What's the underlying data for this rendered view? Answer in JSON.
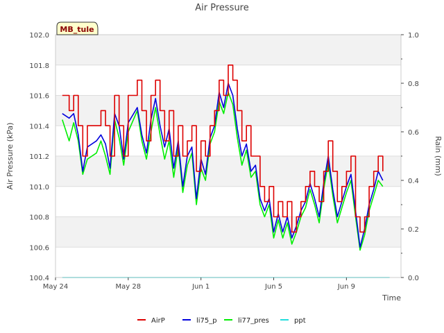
{
  "chart_data": {
    "type": "line",
    "title": "Air Pressure",
    "xlabel": "Time",
    "ylabel": "Air Pressure (kPa)",
    "y2label": "Rain (mm)",
    "ylim": [
      100.4,
      102.0
    ],
    "y2lim": [
      0.0,
      1.0
    ],
    "xlim": [
      "2023-05-24",
      "2023-06-12"
    ],
    "x_ticks": [
      {
        "date": "2023-05-24",
        "label": "May 24"
      },
      {
        "date": "2023-05-28",
        "label": "May 28"
      },
      {
        "date": "2023-06-01",
        "label": "Jun 1"
      },
      {
        "date": "2023-06-05",
        "label": "Jun 5"
      },
      {
        "date": "2023-06-09",
        "label": "Jun 9"
      }
    ],
    "y_ticks": [
      "100.4",
      "100.6",
      "100.8",
      "101.0",
      "101.2",
      "101.4",
      "101.6",
      "101.8",
      "102.0"
    ],
    "y2_ticks": [
      "0.0",
      "0.2",
      "0.4",
      "0.6",
      "0.8",
      "1.0"
    ],
    "grid": "horizontal bands",
    "legend_position": "bottom",
    "station_label": "MB_tule",
    "colors": {
      "AirP": "#dd0000",
      "li75_p": "#0000dd",
      "li77_pres": "#00ee00",
      "ppt": "#22dddd"
    },
    "series": [
      {
        "name": "AirP",
        "axis": "left",
        "points": [
          [
            "2023-05-24 09:00",
            101.6
          ],
          [
            "2023-05-24 18:00",
            101.5
          ],
          [
            "2023-05-25 00:00",
            101.6
          ],
          [
            "2023-05-25 06:00",
            101.4
          ],
          [
            "2023-05-25 12:00",
            101.2
          ],
          [
            "2023-05-25 18:00",
            101.4
          ],
          [
            "2023-05-26 06:00",
            101.4
          ],
          [
            "2023-05-26 12:00",
            101.5
          ],
          [
            "2023-05-26 18:00",
            101.4
          ],
          [
            "2023-05-27 00:00",
            101.2
          ],
          [
            "2023-05-27 06:00",
            101.6
          ],
          [
            "2023-05-27 12:00",
            101.4
          ],
          [
            "2023-05-27 18:00",
            101.2
          ],
          [
            "2023-05-28 00:00",
            101.6
          ],
          [
            "2023-05-28 12:00",
            101.7
          ],
          [
            "2023-05-28 18:00",
            101.5
          ],
          [
            "2023-05-29 00:00",
            101.3
          ],
          [
            "2023-05-29 06:00",
            101.6
          ],
          [
            "2023-05-29 12:00",
            101.7
          ],
          [
            "2023-05-29 18:00",
            101.5
          ],
          [
            "2023-05-30 00:00",
            101.3
          ],
          [
            "2023-05-30 06:00",
            101.5
          ],
          [
            "2023-05-30 12:00",
            101.2
          ],
          [
            "2023-05-30 18:00",
            101.4
          ],
          [
            "2023-05-31 00:00",
            101.2
          ],
          [
            "2023-05-31 06:00",
            101.3
          ],
          [
            "2023-05-31 12:00",
            101.4
          ],
          [
            "2023-05-31 18:00",
            101.1
          ],
          [
            "2023-06-01 00:00",
            101.3
          ],
          [
            "2023-06-01 06:00",
            101.2
          ],
          [
            "2023-06-01 12:00",
            101.4
          ],
          [
            "2023-06-01 18:00",
            101.5
          ],
          [
            "2023-06-02 00:00",
            101.7
          ],
          [
            "2023-06-02 06:00",
            101.6
          ],
          [
            "2023-06-02 12:00",
            101.8
          ],
          [
            "2023-06-02 18:00",
            101.7
          ],
          [
            "2023-06-03 00:00",
            101.5
          ],
          [
            "2023-06-03 06:00",
            101.3
          ],
          [
            "2023-06-03 12:00",
            101.4
          ],
          [
            "2023-06-03 18:00",
            101.2
          ],
          [
            "2023-06-04 00:00",
            101.2
          ],
          [
            "2023-06-04 06:00",
            101.0
          ],
          [
            "2023-06-04 12:00",
            100.9
          ],
          [
            "2023-06-04 18:00",
            101.0
          ],
          [
            "2023-06-05 00:00",
            100.8
          ],
          [
            "2023-06-05 06:00",
            100.9
          ],
          [
            "2023-06-05 12:00",
            100.8
          ],
          [
            "2023-06-05 18:00",
            100.9
          ],
          [
            "2023-06-06 00:00",
            100.7
          ],
          [
            "2023-06-06 06:00",
            100.8
          ],
          [
            "2023-06-06 12:00",
            100.9
          ],
          [
            "2023-06-06 18:00",
            101.0
          ],
          [
            "2023-06-07 00:00",
            101.1
          ],
          [
            "2023-06-07 06:00",
            101.0
          ],
          [
            "2023-06-07 12:00",
            100.9
          ],
          [
            "2023-06-07 18:00",
            101.1
          ],
          [
            "2023-06-08 00:00",
            101.3
          ],
          [
            "2023-06-08 06:00",
            101.1
          ],
          [
            "2023-06-08 12:00",
            100.9
          ],
          [
            "2023-06-08 18:00",
            101.0
          ],
          [
            "2023-06-09 00:00",
            101.1
          ],
          [
            "2023-06-09 06:00",
            101.2
          ],
          [
            "2023-06-09 12:00",
            100.8
          ],
          [
            "2023-06-09 18:00",
            100.7
          ],
          [
            "2023-06-10 00:00",
            100.8
          ],
          [
            "2023-06-10 06:00",
            101.0
          ],
          [
            "2023-06-10 12:00",
            101.1
          ],
          [
            "2023-06-10 18:00",
            101.2
          ],
          [
            "2023-06-11 00:00",
            101.1
          ]
        ]
      },
      {
        "name": "li75_p",
        "axis": "left",
        "points": [
          [
            "2023-05-24 09:00",
            101.48
          ],
          [
            "2023-05-24 18:00",
            101.45
          ],
          [
            "2023-05-25 00:00",
            101.48
          ],
          [
            "2023-05-25 06:00",
            101.34
          ],
          [
            "2023-05-25 12:00",
            101.1
          ],
          [
            "2023-05-25 18:00",
            101.26
          ],
          [
            "2023-05-26 06:00",
            101.3
          ],
          [
            "2023-05-26 12:00",
            101.34
          ],
          [
            "2023-05-26 18:00",
            101.28
          ],
          [
            "2023-05-27 00:00",
            101.12
          ],
          [
            "2023-05-27 06:00",
            101.48
          ],
          [
            "2023-05-27 12:00",
            101.4
          ],
          [
            "2023-05-27 18:00",
            101.18
          ],
          [
            "2023-05-28 00:00",
            101.42
          ],
          [
            "2023-05-28 12:00",
            101.52
          ],
          [
            "2023-05-28 18:00",
            101.34
          ],
          [
            "2023-05-29 00:00",
            101.22
          ],
          [
            "2023-05-29 06:00",
            101.44
          ],
          [
            "2023-05-29 12:00",
            101.58
          ],
          [
            "2023-05-29 18:00",
            101.4
          ],
          [
            "2023-05-30 00:00",
            101.26
          ],
          [
            "2023-05-30 06:00",
            101.38
          ],
          [
            "2023-05-30 12:00",
            101.12
          ],
          [
            "2023-05-30 18:00",
            101.3
          ],
          [
            "2023-05-31 00:00",
            101.0
          ],
          [
            "2023-05-31 06:00",
            101.2
          ],
          [
            "2023-05-31 12:00",
            101.26
          ],
          [
            "2023-05-31 18:00",
            100.92
          ],
          [
            "2023-06-01 00:00",
            101.18
          ],
          [
            "2023-06-01 06:00",
            101.08
          ],
          [
            "2023-06-01 12:00",
            101.32
          ],
          [
            "2023-06-01 18:00",
            101.4
          ],
          [
            "2023-06-02 00:00",
            101.62
          ],
          [
            "2023-06-02 06:00",
            101.52
          ],
          [
            "2023-06-02 12:00",
            101.68
          ],
          [
            "2023-06-02 18:00",
            101.6
          ],
          [
            "2023-06-03 00:00",
            101.38
          ],
          [
            "2023-06-03 06:00",
            101.2
          ],
          [
            "2023-06-03 12:00",
            101.28
          ],
          [
            "2023-06-03 18:00",
            101.1
          ],
          [
            "2023-06-04 00:00",
            101.14
          ],
          [
            "2023-06-04 06:00",
            100.92
          ],
          [
            "2023-06-04 12:00",
            100.84
          ],
          [
            "2023-06-04 18:00",
            100.92
          ],
          [
            "2023-06-05 00:00",
            100.7
          ],
          [
            "2023-06-05 06:00",
            100.82
          ],
          [
            "2023-06-05 12:00",
            100.7
          ],
          [
            "2023-06-05 18:00",
            100.8
          ],
          [
            "2023-06-06 00:00",
            100.66
          ],
          [
            "2023-06-06 06:00",
            100.74
          ],
          [
            "2023-06-06 12:00",
            100.84
          ],
          [
            "2023-06-06 18:00",
            100.9
          ],
          [
            "2023-06-07 00:00",
            101.02
          ],
          [
            "2023-06-07 06:00",
            100.92
          ],
          [
            "2023-06-07 12:00",
            100.8
          ],
          [
            "2023-06-07 18:00",
            101.02
          ],
          [
            "2023-06-08 00:00",
            101.2
          ],
          [
            "2023-06-08 06:00",
            100.98
          ],
          [
            "2023-06-08 12:00",
            100.8
          ],
          [
            "2023-06-08 18:00",
            100.9
          ],
          [
            "2023-06-09 00:00",
            101.0
          ],
          [
            "2023-06-09 06:00",
            101.08
          ],
          [
            "2023-06-09 12:00",
            100.84
          ],
          [
            "2023-06-09 18:00",
            100.6
          ],
          [
            "2023-06-10 00:00",
            100.72
          ],
          [
            "2023-06-10 06:00",
            100.88
          ],
          [
            "2023-06-10 12:00",
            100.98
          ],
          [
            "2023-06-10 18:00",
            101.1
          ],
          [
            "2023-06-11 00:00",
            101.04
          ]
        ]
      },
      {
        "name": "li77_pres",
        "axis": "left",
        "points": [
          [
            "2023-05-24 09:00",
            101.44
          ],
          [
            "2023-05-24 18:00",
            101.3
          ],
          [
            "2023-05-25 00:00",
            101.42
          ],
          [
            "2023-05-25 06:00",
            101.3
          ],
          [
            "2023-05-25 12:00",
            101.08
          ],
          [
            "2023-05-25 18:00",
            101.18
          ],
          [
            "2023-05-26 06:00",
            101.22
          ],
          [
            "2023-05-26 12:00",
            101.3
          ],
          [
            "2023-05-26 18:00",
            101.2
          ],
          [
            "2023-05-27 00:00",
            101.08
          ],
          [
            "2023-05-27 06:00",
            101.44
          ],
          [
            "2023-05-27 12:00",
            101.32
          ],
          [
            "2023-05-27 18:00",
            101.14
          ],
          [
            "2023-05-28 00:00",
            101.36
          ],
          [
            "2023-05-28 12:00",
            101.5
          ],
          [
            "2023-05-28 18:00",
            101.3
          ],
          [
            "2023-05-29 00:00",
            101.18
          ],
          [
            "2023-05-29 06:00",
            101.36
          ],
          [
            "2023-05-29 12:00",
            101.52
          ],
          [
            "2023-05-29 18:00",
            101.34
          ],
          [
            "2023-05-30 00:00",
            101.18
          ],
          [
            "2023-05-30 06:00",
            101.3
          ],
          [
            "2023-05-30 12:00",
            101.06
          ],
          [
            "2023-05-30 18:00",
            101.26
          ],
          [
            "2023-05-31 00:00",
            100.96
          ],
          [
            "2023-05-31 06:00",
            101.14
          ],
          [
            "2023-05-31 12:00",
            101.22
          ],
          [
            "2023-05-31 18:00",
            100.88
          ],
          [
            "2023-06-01 00:00",
            101.12
          ],
          [
            "2023-06-01 06:00",
            101.04
          ],
          [
            "2023-06-01 12:00",
            101.28
          ],
          [
            "2023-06-01 18:00",
            101.36
          ],
          [
            "2023-06-02 00:00",
            101.56
          ],
          [
            "2023-06-02 06:00",
            101.48
          ],
          [
            "2023-06-02 12:00",
            101.62
          ],
          [
            "2023-06-02 18:00",
            101.54
          ],
          [
            "2023-06-03 00:00",
            101.32
          ],
          [
            "2023-06-03 06:00",
            101.14
          ],
          [
            "2023-06-03 12:00",
            101.24
          ],
          [
            "2023-06-03 18:00",
            101.06
          ],
          [
            "2023-06-04 00:00",
            101.1
          ],
          [
            "2023-06-04 06:00",
            100.88
          ],
          [
            "2023-06-04 12:00",
            100.8
          ],
          [
            "2023-06-04 18:00",
            100.88
          ],
          [
            "2023-06-05 00:00",
            100.66
          ],
          [
            "2023-06-05 06:00",
            100.78
          ],
          [
            "2023-06-05 12:00",
            100.66
          ],
          [
            "2023-06-05 18:00",
            100.76
          ],
          [
            "2023-06-06 00:00",
            100.62
          ],
          [
            "2023-06-06 06:00",
            100.7
          ],
          [
            "2023-06-06 12:00",
            100.8
          ],
          [
            "2023-06-06 18:00",
            100.86
          ],
          [
            "2023-06-07 00:00",
            100.98
          ],
          [
            "2023-06-07 06:00",
            100.88
          ],
          [
            "2023-06-07 12:00",
            100.76
          ],
          [
            "2023-06-07 18:00",
            100.98
          ],
          [
            "2023-06-08 00:00",
            101.16
          ],
          [
            "2023-06-08 06:00",
            100.94
          ],
          [
            "2023-06-08 12:00",
            100.76
          ],
          [
            "2023-06-08 18:00",
            100.86
          ],
          [
            "2023-06-09 00:00",
            100.96
          ],
          [
            "2023-06-09 06:00",
            101.04
          ],
          [
            "2023-06-09 12:00",
            100.8
          ],
          [
            "2023-06-09 18:00",
            100.58
          ],
          [
            "2023-06-10 00:00",
            100.68
          ],
          [
            "2023-06-10 06:00",
            100.84
          ],
          [
            "2023-06-10 12:00",
            100.94
          ],
          [
            "2023-06-10 18:00",
            101.04
          ],
          [
            "2023-06-11 00:00",
            101.0
          ]
        ]
      },
      {
        "name": "ppt",
        "axis": "right",
        "points": [
          [
            "2023-05-24 09:00",
            0.0
          ],
          [
            "2023-06-11 09:00",
            0.0
          ]
        ]
      }
    ]
  }
}
